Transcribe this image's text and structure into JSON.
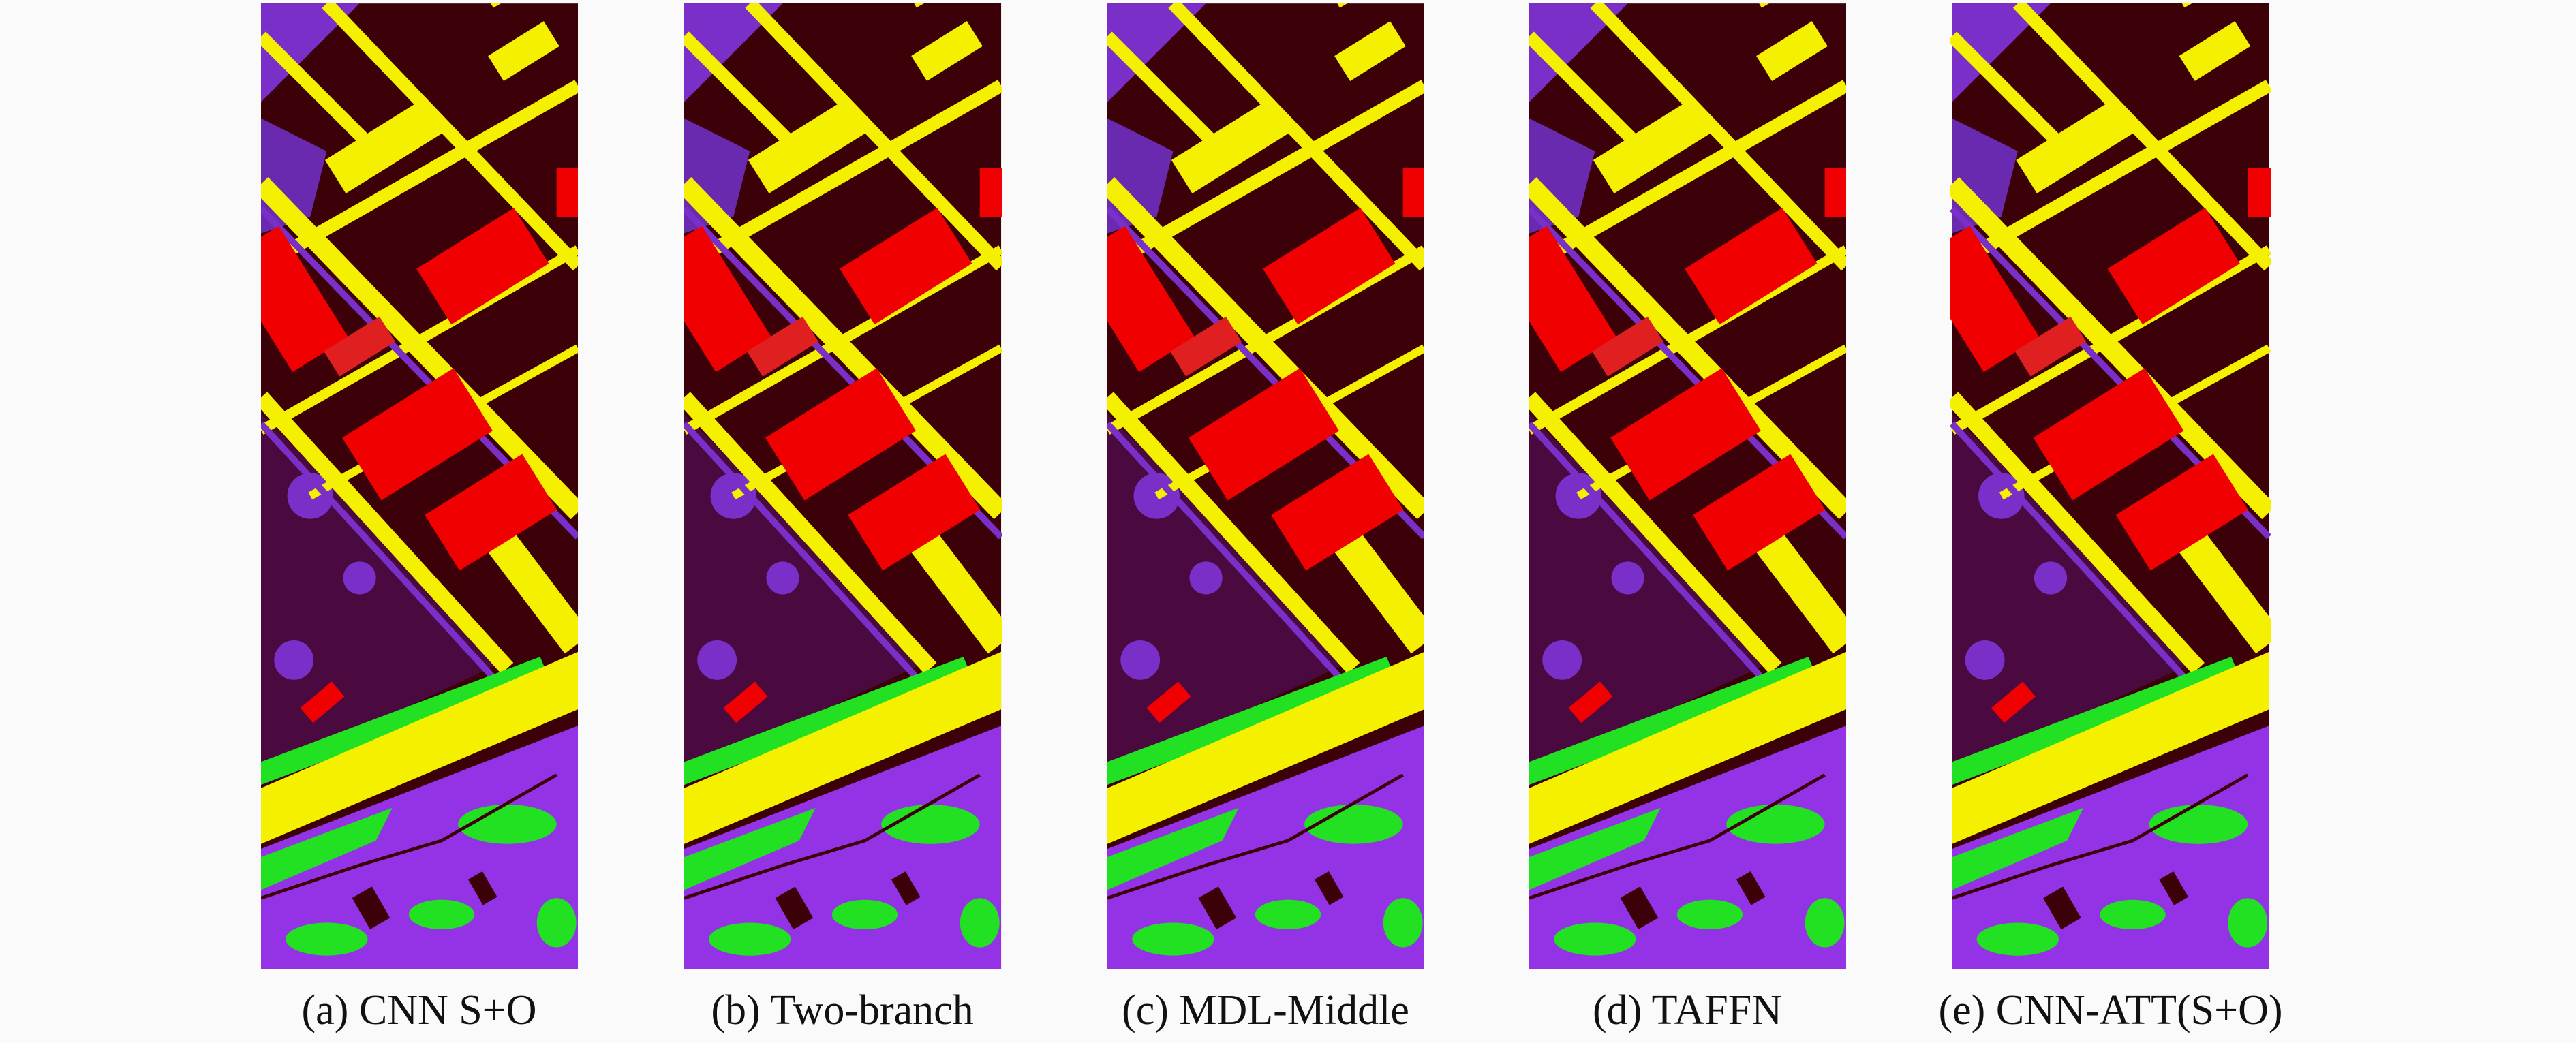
{
  "figure": {
    "captions": [
      "(a) CNN S+O",
      "(b) Two-branch",
      "(c) MDL-Middle",
      "(d) TAFFN",
      "(e) CNN-ATT(S+O)"
    ]
  }
}
